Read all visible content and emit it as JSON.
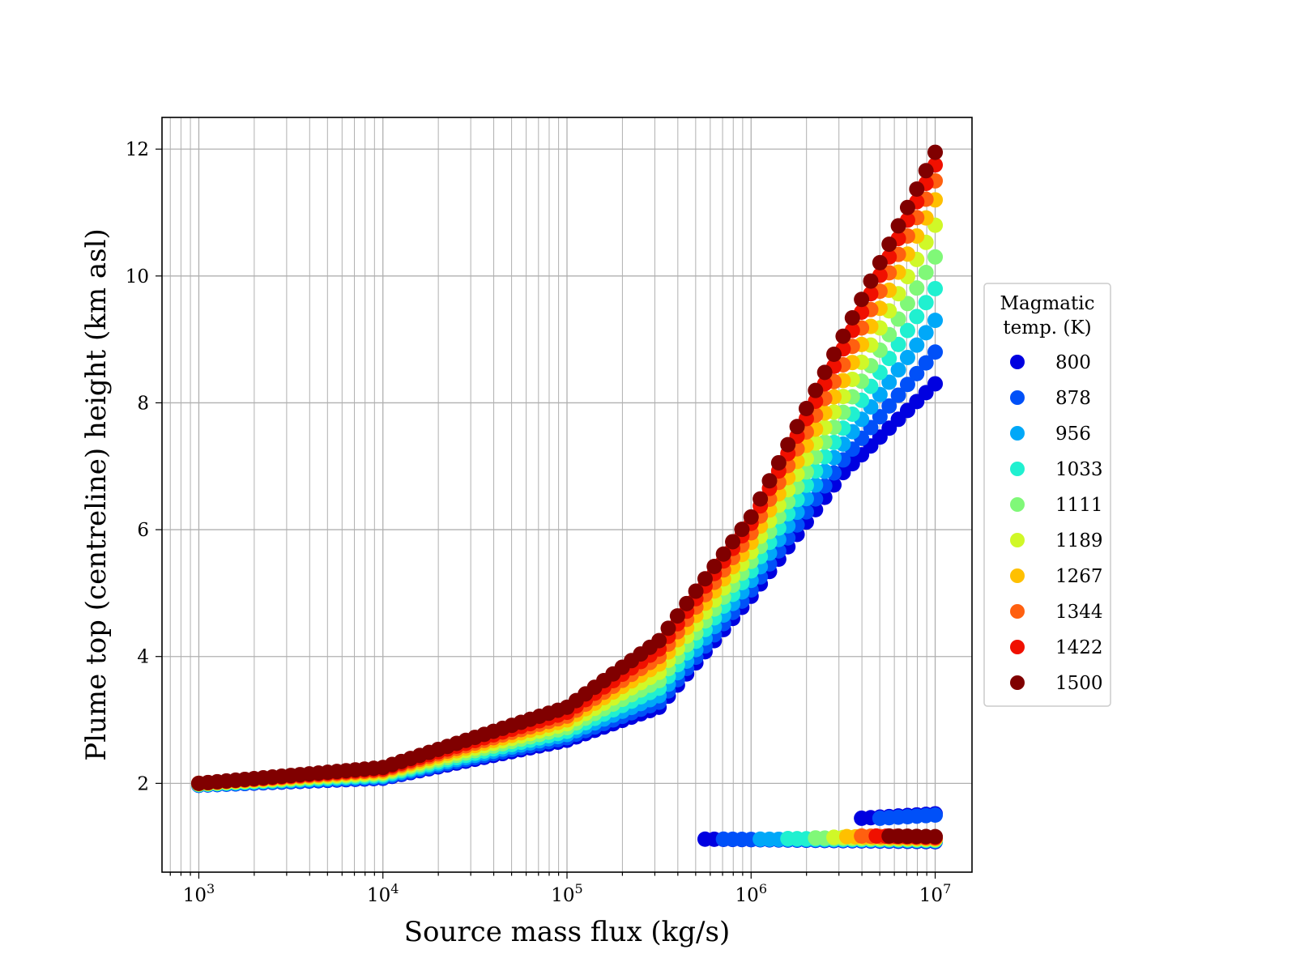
{
  "chart_data": {
    "type": "scatter",
    "xlabel": "Source mass flux (kg/s)",
    "ylabel": "Plume top (centreline) height (km asl)",
    "xscale": "log",
    "xlim": [
      600,
      15000
    ],
    "xlim_exp": [
      2.8,
      7.2
    ],
    "ylim": [
      0.6,
      12.5
    ],
    "grid": true,
    "x_ticks": [
      {
        "base": "10",
        "exp": "3",
        "value": 1000
      },
      {
        "base": "10",
        "exp": "4",
        "value": 10000
      },
      {
        "base": "10",
        "exp": "5",
        "value": 100000
      },
      {
        "base": "10",
        "exp": "6",
        "value": 1000000
      },
      {
        "base": "10",
        "exp": "7",
        "value": 10000000
      }
    ],
    "y_ticks": [
      "2",
      "4",
      "6",
      "8",
      "10",
      "12"
    ],
    "legend": {
      "title_line1": "Magmatic",
      "title_line2": "temp. (K)",
      "position": "right-outside"
    },
    "series": [
      {
        "name": "800",
        "temp": 800,
        "color": "#0000e0",
        "y_at": [
          [
            3,
            1.97
          ],
          [
            4,
            2.08
          ],
          [
            5,
            2.68
          ],
          [
            5.5,
            3.2
          ],
          [
            6,
            4.95
          ],
          [
            6.5,
            6.9
          ],
          [
            7,
            8.3
          ]
        ],
        "low_branch": {
          "x_exp": [
            5.75,
            7.0
          ],
          "y": [
            1.12,
            1.08
          ]
        },
        "high_low_branch": {
          "x_exp": [
            6.6,
            7.0
          ],
          "y": [
            1.45,
            1.52
          ]
        }
      },
      {
        "name": "878",
        "temp": 878,
        "color": "#0050f8",
        "y_at": [
          [
            3,
            1.97
          ],
          [
            4,
            2.09
          ],
          [
            5,
            2.72
          ],
          [
            5.5,
            3.28
          ],
          [
            6,
            5.05
          ],
          [
            6.5,
            7.1
          ],
          [
            7,
            8.8
          ]
        ],
        "low_branch": {
          "x_exp": [
            5.85,
            7.0
          ],
          "y": [
            1.12,
            1.09
          ]
        },
        "high_low_branch": {
          "x_exp": [
            6.7,
            7.0
          ],
          "y": [
            1.45,
            1.5
          ]
        }
      },
      {
        "name": "956",
        "temp": 956,
        "color": "#00a8f8",
        "y_at": [
          [
            3,
            1.98
          ],
          [
            4,
            2.11
          ],
          [
            5,
            2.77
          ],
          [
            5.5,
            3.38
          ],
          [
            6,
            5.2
          ],
          [
            6.5,
            7.35
          ],
          [
            7,
            9.3
          ]
        ],
        "low_branch": {
          "x_exp": [
            6.05,
            7.0
          ],
          "y": [
            1.12,
            1.1
          ]
        }
      },
      {
        "name": "1033",
        "temp": 1033,
        "color": "#20f0d0",
        "y_at": [
          [
            3,
            1.98
          ],
          [
            4,
            2.13
          ],
          [
            5,
            2.82
          ],
          [
            5.5,
            3.5
          ],
          [
            6,
            5.35
          ],
          [
            6.5,
            7.6
          ],
          [
            7,
            9.8
          ]
        ],
        "low_branch": {
          "x_exp": [
            6.2,
            7.0
          ],
          "y": [
            1.13,
            1.1
          ]
        }
      },
      {
        "name": "1111",
        "temp": 1111,
        "color": "#80f878",
        "y_at": [
          [
            3,
            1.99
          ],
          [
            4,
            2.15
          ],
          [
            5,
            2.88
          ],
          [
            5.5,
            3.62
          ],
          [
            6,
            5.5
          ],
          [
            6.5,
            7.85
          ],
          [
            7,
            10.3
          ]
        ],
        "low_branch": {
          "x_exp": [
            6.35,
            7.0
          ],
          "y": [
            1.14,
            1.11
          ]
        }
      },
      {
        "name": "1189",
        "temp": 1189,
        "color": "#d0f828",
        "y_at": [
          [
            3,
            1.99
          ],
          [
            4,
            2.17
          ],
          [
            5,
            2.94
          ],
          [
            5.5,
            3.75
          ],
          [
            6,
            5.65
          ],
          [
            6.5,
            8.1
          ],
          [
            7,
            10.8
          ]
        ],
        "low_branch": {
          "x_exp": [
            6.45,
            7.0
          ],
          "y": [
            1.15,
            1.12
          ]
        }
      },
      {
        "name": "1267",
        "temp": 1267,
        "color": "#ffc000",
        "y_at": [
          [
            3,
            2.0
          ],
          [
            4,
            2.19
          ],
          [
            5,
            3.0
          ],
          [
            5.5,
            3.88
          ],
          [
            6,
            5.8
          ],
          [
            6.5,
            8.35
          ],
          [
            7,
            11.2
          ]
        ],
        "low_branch": {
          "x_exp": [
            6.52,
            7.0
          ],
          "y": [
            1.16,
            1.13
          ]
        }
      },
      {
        "name": "1344",
        "temp": 1344,
        "color": "#ff6010",
        "y_at": [
          [
            3,
            2.0
          ],
          [
            4,
            2.21
          ],
          [
            5,
            3.06
          ],
          [
            5.5,
            4.0
          ],
          [
            6,
            5.95
          ],
          [
            6.5,
            8.6
          ],
          [
            7,
            11.5
          ]
        ],
        "low_branch": {
          "x_exp": [
            6.6,
            7.0
          ],
          "y": [
            1.17,
            1.14
          ]
        }
      },
      {
        "name": "1422",
        "temp": 1422,
        "color": "#f01000",
        "y_at": [
          [
            3,
            2.0
          ],
          [
            4,
            2.23
          ],
          [
            5,
            3.12
          ],
          [
            5.5,
            4.12
          ],
          [
            6,
            6.1
          ],
          [
            6.5,
            8.85
          ],
          [
            7,
            11.75
          ]
        ],
        "low_branch": {
          "x_exp": [
            6.68,
            7.0
          ],
          "y": [
            1.17,
            1.15
          ]
        }
      },
      {
        "name": "1500",
        "temp": 1500,
        "color": "#800000",
        "y_at": [
          [
            3,
            2.0
          ],
          [
            4,
            2.25
          ],
          [
            5,
            3.2
          ],
          [
            5.5,
            4.25
          ],
          [
            6,
            6.2
          ],
          [
            6.5,
            9.05
          ],
          [
            7,
            11.95
          ]
        ],
        "low_branch": {
          "x_exp": [
            6.75,
            7.0
          ],
          "y": [
            1.17,
            1.16
          ]
        }
      }
    ]
  }
}
